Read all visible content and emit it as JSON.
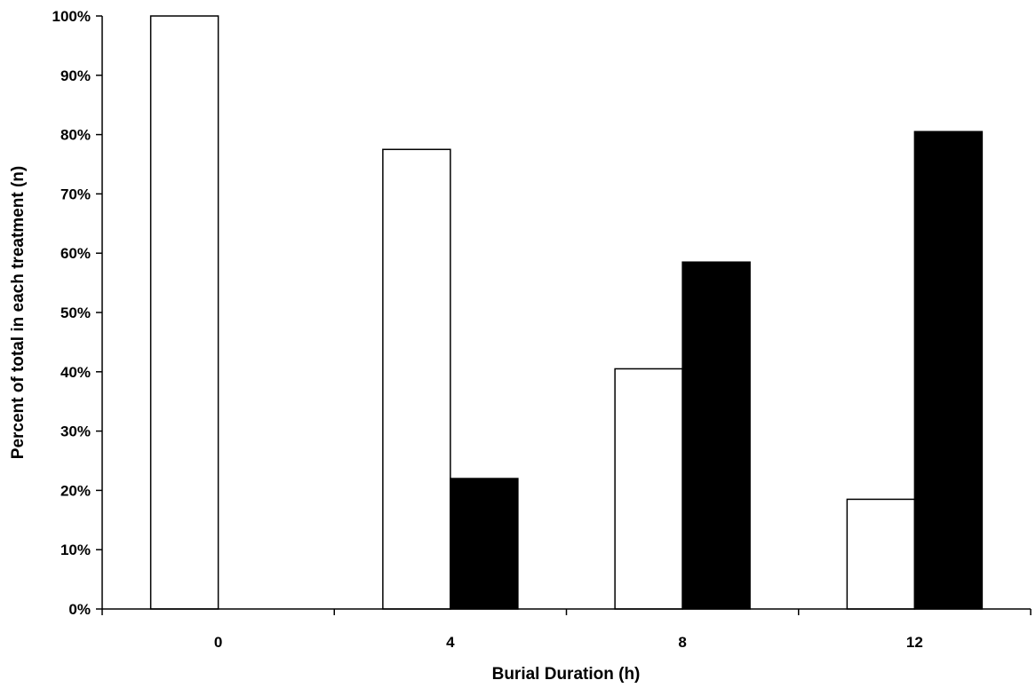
{
  "chart_data": {
    "type": "bar",
    "title": "",
    "xlabel": "Burial Duration (h)",
    "ylabel": "Percent of total in each treatment (n)",
    "categories": [
      "0",
      "4",
      "8",
      "12"
    ],
    "ylim": [
      0,
      100
    ],
    "yticks": [
      "0%",
      "10%",
      "20%",
      "30%",
      "40%",
      "50%",
      "60%",
      "70%",
      "80%",
      "90%",
      "100%"
    ],
    "grid": false,
    "legend": "none",
    "series": [
      {
        "values": [
          100,
          77.5,
          40.5,
          18.5
        ],
        "color": "#ffffff"
      },
      {
        "values": [
          0,
          22,
          58.5,
          80.5
        ],
        "color": "#000000"
      }
    ]
  }
}
